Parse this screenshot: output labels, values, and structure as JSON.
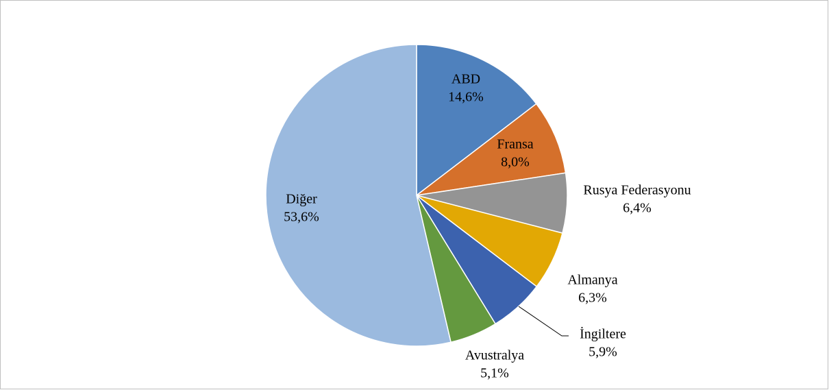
{
  "chart_data": {
    "type": "pie",
    "categories": [
      "ABD",
      "Fransa",
      "Rusya Federasyonu",
      "Almanya",
      "İngiltere",
      "Avustralya",
      "Diğer"
    ],
    "values": [
      14.6,
      8.0,
      6.4,
      6.3,
      5.9,
      5.1,
      53.6
    ],
    "value_labels": [
      "14,6%",
      "8,0%",
      "6,4%",
      "6,3%",
      "5,9%",
      "5,1%",
      "53,6%"
    ],
    "colors": [
      "#4f81bd",
      "#d5702b",
      "#949494",
      "#e2a804",
      "#3c62ae",
      "#64993f",
      "#9bbadf"
    ]
  }
}
